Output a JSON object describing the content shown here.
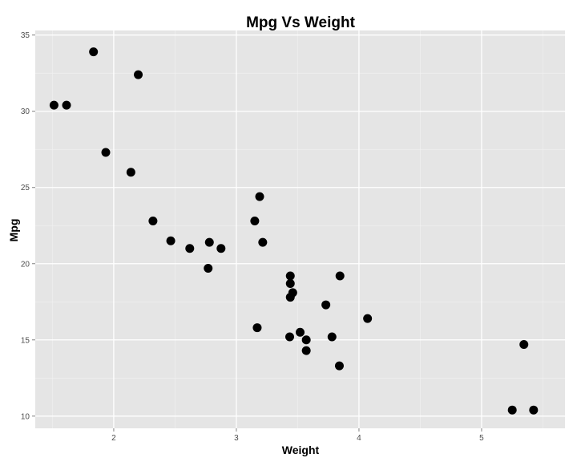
{
  "chart_data": {
    "type": "scatter",
    "title": "Mpg Vs Weight",
    "xlabel": "Weight",
    "ylabel": "Mpg",
    "xlim": [
      1.36,
      5.68
    ],
    "ylim": [
      9.2,
      35.3
    ],
    "x_ticks": [
      2,
      3,
      4,
      5
    ],
    "y_ticks": [
      10,
      15,
      20,
      25,
      30,
      35
    ],
    "grid": true,
    "background": "#e5e5e5",
    "point_color": "#000000",
    "points": [
      {
        "x": 2.62,
        "y": 21.0
      },
      {
        "x": 2.875,
        "y": 21.0
      },
      {
        "x": 2.32,
        "y": 22.8
      },
      {
        "x": 3.215,
        "y": 21.4
      },
      {
        "x": 3.44,
        "y": 18.7
      },
      {
        "x": 3.46,
        "y": 18.1
      },
      {
        "x": 3.57,
        "y": 14.3
      },
      {
        "x": 3.19,
        "y": 24.4
      },
      {
        "x": 3.15,
        "y": 22.8
      },
      {
        "x": 3.44,
        "y": 19.2
      },
      {
        "x": 3.44,
        "y": 17.8
      },
      {
        "x": 4.07,
        "y": 16.4
      },
      {
        "x": 3.73,
        "y": 17.3
      },
      {
        "x": 3.78,
        "y": 15.2
      },
      {
        "x": 5.25,
        "y": 10.4
      },
      {
        "x": 5.424,
        "y": 10.4
      },
      {
        "x": 5.345,
        "y": 14.7
      },
      {
        "x": 2.2,
        "y": 32.4
      },
      {
        "x": 1.615,
        "y": 30.4
      },
      {
        "x": 1.835,
        "y": 33.9
      },
      {
        "x": 2.465,
        "y": 21.5
      },
      {
        "x": 3.52,
        "y": 15.5
      },
      {
        "x": 3.435,
        "y": 15.2
      },
      {
        "x": 3.84,
        "y": 13.3
      },
      {
        "x": 3.845,
        "y": 19.2
      },
      {
        "x": 1.935,
        "y": 27.3
      },
      {
        "x": 2.14,
        "y": 26.0
      },
      {
        "x": 1.513,
        "y": 30.4
      },
      {
        "x": 3.17,
        "y": 15.8
      },
      {
        "x": 2.77,
        "y": 19.7
      },
      {
        "x": 3.57,
        "y": 15.0
      },
      {
        "x": 2.78,
        "y": 21.4
      }
    ]
  }
}
